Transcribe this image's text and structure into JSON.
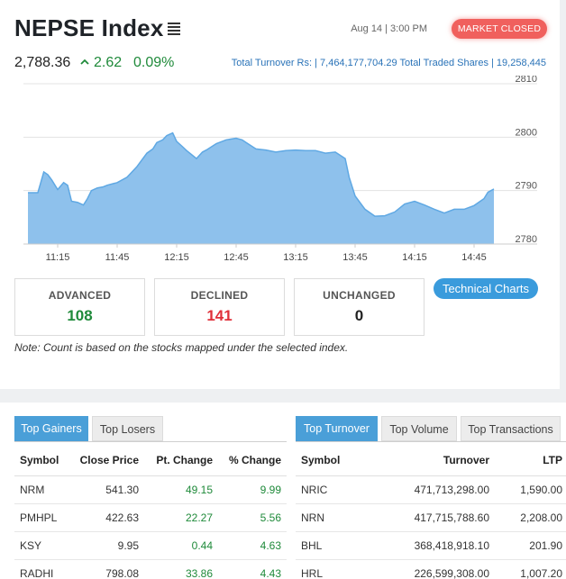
{
  "header": {
    "title": "NEPSE Index",
    "datetime": "Aug 14 | 3:00 PM",
    "status": "MARKET CLOSED",
    "index_value": "2,788.36",
    "change_points": "2.62",
    "change_percent": "0.09%",
    "turnover_line": "Total Turnover Rs: | 7,464,177,704.29  Total Traded Shares | 19,258,445"
  },
  "colors": {
    "positive": "#1f8a3a",
    "negative": "#e0303a",
    "accent": "#4a9fd8",
    "chart_fill": "#8ec1ec",
    "chart_line": "#5fa8e3",
    "badge": "#f0605d"
  },
  "icons": {
    "menu": "menu-lines-icon",
    "up": "caret-up-icon"
  },
  "chart_data": {
    "type": "area",
    "x_ticks": [
      "11:15",
      "11:45",
      "12:15",
      "12:45",
      "13:15",
      "13:45",
      "14:15",
      "14:45"
    ],
    "y_ticks": [
      "2810",
      "2800",
      "2790",
      "2780"
    ],
    "ylim": [
      2780,
      2810
    ],
    "grid": "horizontal",
    "series": [
      {
        "x": [
          "11:00",
          "11:05",
          "11:08",
          "11:10",
          "11:12",
          "11:15",
          "11:18",
          "11:20",
          "11:22",
          "11:25",
          "11:28",
          "11:30",
          "11:32",
          "11:35",
          "11:38",
          "11:40",
          "11:45",
          "11:50",
          "11:55",
          "12:00",
          "12:03",
          "12:05",
          "12:08",
          "12:10",
          "12:13",
          "12:15",
          "12:18",
          "12:20",
          "12:25",
          "12:28",
          "12:30",
          "12:35",
          "12:40",
          "12:45",
          "12:48",
          "12:50",
          "12:55",
          "13:00",
          "13:05",
          "13:10",
          "13:15",
          "13:20",
          "13:25",
          "13:30",
          "13:35",
          "13:40",
          "13:42",
          "13:45",
          "13:50",
          "13:55",
          "14:00",
          "14:05",
          "14:10",
          "14:15",
          "14:20",
          "14:25",
          "14:30",
          "14:35",
          "14:40",
          "14:45",
          "14:50",
          "14:52",
          "14:55"
        ],
        "y": [
          2789.6,
          2789.6,
          2793.5,
          2793.0,
          2792.0,
          2790.2,
          2791.5,
          2791.0,
          2788.0,
          2787.8,
          2787.3,
          2788.5,
          2790.0,
          2790.5,
          2790.7,
          2791.0,
          2791.5,
          2792.5,
          2794.5,
          2797.0,
          2797.8,
          2799.0,
          2799.5,
          2800.3,
          2800.8,
          2799.2,
          2798.2,
          2797.5,
          2796.0,
          2797.2,
          2797.6,
          2798.8,
          2799.5,
          2799.8,
          2799.5,
          2799.0,
          2797.8,
          2797.6,
          2797.2,
          2797.5,
          2797.6,
          2797.5,
          2797.5,
          2797.0,
          2797.2,
          2796.0,
          2792.5,
          2789.0,
          2786.5,
          2785.2,
          2785.3,
          2786.0,
          2787.5,
          2788.0,
          2787.3,
          2786.5,
          2785.8,
          2786.5,
          2786.5,
          2787.2,
          2788.5,
          2789.7,
          2790.3
        ]
      }
    ]
  },
  "stats": {
    "advanced_label": "ADVANCED",
    "advanced_value": "108",
    "declined_label": "DECLINED",
    "declined_value": "141",
    "unchanged_label": "UNCHANGED",
    "unchanged_value": "0",
    "tech_charts_label": "Technical Charts",
    "note": "Note: Count is based on the stocks mapped under the selected index."
  },
  "gainers": {
    "tabs": [
      "Top Gainers",
      "Top Losers"
    ],
    "columns": [
      "Symbol",
      "Close Price",
      "Pt. Change",
      "% Change"
    ],
    "rows": [
      [
        "NRM",
        "541.30",
        "49.15",
        "9.99"
      ],
      [
        "PMHPL",
        "422.63",
        "22.27",
        "5.56"
      ],
      [
        "KSY",
        "9.95",
        "0.44",
        "4.63"
      ],
      [
        "RADHI",
        "798.08",
        "33.86",
        "4.43"
      ]
    ]
  },
  "turnover": {
    "tabs": [
      "Top Turnover",
      "Top Volume",
      "Top Transactions"
    ],
    "columns": [
      "Symbol",
      "Turnover",
      "LTP"
    ],
    "rows": [
      [
        "NRIC",
        "471,713,298.00",
        "1,590.00"
      ],
      [
        "NRN",
        "417,715,788.60",
        "2,208.00"
      ],
      [
        "BHL",
        "368,418,918.10",
        "201.90"
      ],
      [
        "HRL",
        "226,599,308.00",
        "1,007.20"
      ]
    ]
  }
}
